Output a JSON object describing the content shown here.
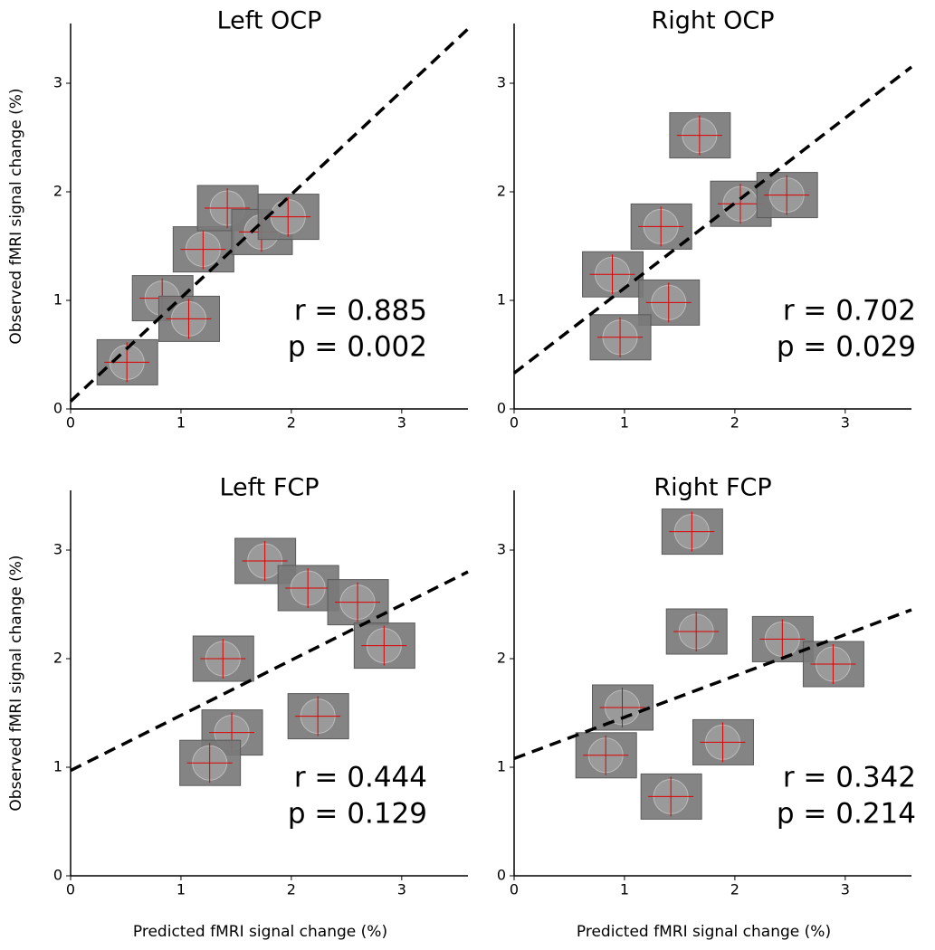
{
  "chart_data": [
    {
      "type": "scatter",
      "title": "Left OCP",
      "ylabel": "Observed fMRI signal change (%)",
      "x": [
        0.51,
        0.83,
        1.07,
        1.2,
        1.42,
        1.73,
        1.97
      ],
      "y": [
        0.43,
        1.02,
        0.83,
        1.47,
        1.85,
        1.63,
        1.77
      ],
      "xlim": [
        0,
        3.6
      ],
      "ylim": [
        0,
        3.55
      ],
      "xticks": [
        0,
        1,
        2,
        3
      ],
      "yticks": [
        0,
        1,
        2,
        3
      ],
      "fit": {
        "x": [
          0,
          3.6
        ],
        "y": [
          0.07,
          3.5
        ]
      },
      "annotations": [
        "r = 0.885",
        "p = 0.002"
      ]
    },
    {
      "type": "scatter",
      "title": "Right OCP",
      "x": [
        1.68,
        2.05,
        2.47,
        1.33,
        0.89,
        1.4,
        0.96
      ],
      "y": [
        2.52,
        1.89,
        1.97,
        1.68,
        1.24,
        0.98,
        0.66
      ],
      "xlim": [
        0,
        3.6
      ],
      "ylim": [
        0,
        3.55
      ],
      "xticks": [
        0,
        1,
        2,
        3
      ],
      "yticks": [
        0,
        1,
        2,
        3
      ],
      "fit": {
        "x": [
          0,
          3.6
        ],
        "y": [
          0.33,
          3.15
        ]
      },
      "annotations": [
        "r = 0.702",
        "p = 0.029"
      ]
    },
    {
      "type": "scatter",
      "title": "Left FCP",
      "ylabel": "Observed fMRI signal change (%)",
      "xlabel": "Predicted fMRI signal change (%)",
      "x": [
        1.76,
        2.15,
        2.6,
        2.84,
        1.38,
        2.24,
        1.46,
        1.26
      ],
      "y": [
        2.9,
        2.65,
        2.52,
        2.12,
        2.0,
        1.47,
        1.32,
        1.04
      ],
      "xlim": [
        0,
        3.6
      ],
      "ylim": [
        0,
        3.55
      ],
      "xticks": [
        0,
        1,
        2,
        3
      ],
      "yticks": [
        0,
        1,
        2,
        3
      ],
      "fit": {
        "x": [
          0,
          3.6
        ],
        "y": [
          0.97,
          2.8
        ]
      },
      "annotations": [
        "r = 0.444",
        "p = 0.129"
      ]
    },
    {
      "type": "scatter",
      "title": "Right FCP",
      "xlabel": "Predicted fMRI signal change (%)",
      "x": [
        1.61,
        1.65,
        2.43,
        2.89,
        0.98,
        1.89,
        0.83,
        1.42
      ],
      "y": [
        3.17,
        2.25,
        2.18,
        1.95,
        1.55,
        1.23,
        1.11,
        0.73
      ],
      "xlim": [
        0,
        3.6
      ],
      "ylim": [
        0,
        3.55
      ],
      "xticks": [
        0,
        1,
        2,
        3
      ],
      "yticks": [
        0,
        1,
        2,
        3
      ],
      "fit": {
        "x": [
          0,
          3.6
        ],
        "y": [
          1.08,
          2.45
        ]
      },
      "annotations": [
        "r = 0.342",
        "p = 0.214"
      ]
    }
  ]
}
